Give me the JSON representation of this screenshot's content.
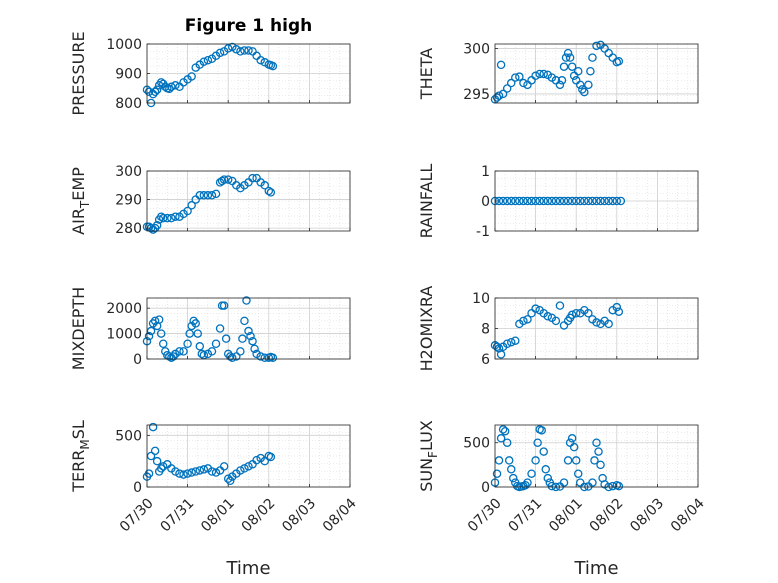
{
  "chart_data": [
    {
      "type": "scatter",
      "title": "Figure 1 high",
      "ylabel": "PRESSURE",
      "xlim": [
        "07/30",
        "08/04"
      ],
      "ylim": [
        800,
        1000
      ],
      "yticks": [
        "800",
        "900",
        "1000"
      ],
      "xticklabels": [],
      "x": [
        0.0,
        0.05,
        0.1,
        0.15,
        0.2,
        0.25,
        0.3,
        0.35,
        0.4,
        0.45,
        0.5,
        0.55,
        0.6,
        0.7,
        0.8,
        0.9,
        1.0,
        1.1,
        1.2,
        1.3,
        1.4,
        1.5,
        1.6,
        1.7,
        1.8,
        1.9,
        2.0,
        2.1,
        2.2,
        2.3,
        2.4,
        2.5,
        2.6,
        2.7,
        2.8,
        2.9,
        3.0,
        3.05,
        3.1
      ],
      "y": [
        845,
        838,
        800,
        830,
        838,
        845,
        860,
        870,
        865,
        855,
        850,
        848,
        855,
        860,
        855,
        870,
        880,
        890,
        920,
        930,
        940,
        945,
        950,
        960,
        970,
        975,
        985,
        990,
        982,
        975,
        978,
        978,
        975,
        960,
        945,
        938,
        930,
        928,
        925
      ]
    },
    {
      "type": "scatter",
      "ylabel": "THETA",
      "xlim": [
        "07/30",
        "08/04"
      ],
      "ylim": [
        294,
        300.5
      ],
      "yticks": [
        "295",
        "300"
      ],
      "xticklabels": [],
      "x": [
        0.0,
        0.05,
        0.1,
        0.15,
        0.2,
        0.3,
        0.4,
        0.5,
        0.6,
        0.7,
        0.8,
        0.9,
        1.0,
        1.1,
        1.2,
        1.3,
        1.4,
        1.5,
        1.6,
        1.65,
        1.7,
        1.75,
        1.8,
        1.85,
        1.9,
        1.95,
        2.0,
        2.05,
        2.1,
        2.15,
        2.2,
        2.3,
        2.35,
        2.4,
        2.5,
        2.6,
        2.7,
        2.8,
        2.9,
        3.0,
        3.05
      ],
      "y": [
        294.4,
        294.6,
        294.8,
        298.2,
        295,
        295.6,
        296.2,
        296.8,
        296.9,
        296.2,
        296,
        296.5,
        297,
        297.2,
        297.2,
        297.1,
        296.8,
        296.5,
        296,
        296.5,
        298,
        299,
        299.5,
        299,
        298,
        297,
        296.5,
        297.5,
        296,
        295.5,
        295.2,
        296,
        297.5,
        299,
        300.3,
        300.4,
        300,
        299.5,
        299,
        298.5,
        298.6
      ]
    },
    {
      "type": "scatter",
      "ylabel": "AIR_TEMP",
      "xlim": [
        "07/30",
        "08/04"
      ],
      "ylim": [
        279,
        300
      ],
      "yticks": [
        "280",
        "290",
        "300"
      ],
      "xticklabels": [],
      "x": [
        0.0,
        0.05,
        0.1,
        0.15,
        0.2,
        0.25,
        0.3,
        0.35,
        0.4,
        0.5,
        0.6,
        0.7,
        0.8,
        0.9,
        1.0,
        1.1,
        1.2,
        1.3,
        1.4,
        1.5,
        1.6,
        1.7,
        1.8,
        1.85,
        1.9,
        2.0,
        2.1,
        2.2,
        2.3,
        2.4,
        2.5,
        2.6,
        2.7,
        2.8,
        2.9,
        3.0,
        3.05
      ],
      "y": [
        280.5,
        280.5,
        280,
        279.5,
        280,
        281,
        283,
        284,
        283.5,
        283.5,
        283.5,
        284,
        284,
        285,
        286,
        288,
        290,
        291.5,
        291.5,
        291.5,
        291.5,
        292,
        296,
        296.5,
        297,
        297,
        296.5,
        295,
        294,
        295,
        296,
        297.5,
        297.5,
        296,
        295,
        293,
        292.5
      ]
    },
    {
      "type": "scatter",
      "ylabel": "RAINFALL",
      "xlim": [
        "07/30",
        "08/04"
      ],
      "ylim": [
        -1,
        1
      ],
      "yticks": [
        "-1",
        "0",
        "1"
      ],
      "xticklabels": [],
      "x": [
        0.0,
        0.1,
        0.2,
        0.3,
        0.4,
        0.5,
        0.6,
        0.7,
        0.8,
        0.9,
        1.0,
        1.1,
        1.2,
        1.3,
        1.4,
        1.5,
        1.6,
        1.7,
        1.8,
        1.9,
        2.0,
        2.1,
        2.2,
        2.3,
        2.4,
        2.5,
        2.6,
        2.7,
        2.8,
        2.9,
        3.0,
        3.1
      ],
      "y": [
        0,
        0,
        0,
        0,
        0,
        0,
        0,
        0,
        0,
        0,
        0,
        0,
        0,
        0,
        0,
        0,
        0,
        0,
        0,
        0,
        0,
        0,
        0,
        0,
        0,
        0,
        0,
        0,
        0,
        0,
        0,
        0
      ]
    },
    {
      "type": "scatter",
      "ylabel": "MIXDEPTH",
      "xlim": [
        "07/30",
        "08/04"
      ],
      "ylim": [
        0,
        2400
      ],
      "yticks": [
        "0",
        "1000",
        "2000"
      ],
      "xticklabels": [],
      "x": [
        0.0,
        0.05,
        0.1,
        0.15,
        0.2,
        0.25,
        0.3,
        0.35,
        0.4,
        0.45,
        0.5,
        0.55,
        0.6,
        0.65,
        0.7,
        0.8,
        0.9,
        1.0,
        1.05,
        1.1,
        1.15,
        1.2,
        1.25,
        1.3,
        1.35,
        1.4,
        1.5,
        1.6,
        1.7,
        1.8,
        1.85,
        1.9,
        1.95,
        2.0,
        2.05,
        2.1,
        2.2,
        2.3,
        2.35,
        2.4,
        2.45,
        2.5,
        2.55,
        2.6,
        2.65,
        2.7,
        2.8,
        2.9,
        3.0,
        3.05,
        3.1
      ],
      "y": [
        700,
        900,
        1100,
        1400,
        1500,
        1300,
        1550,
        1000,
        600,
        300,
        150,
        100,
        50,
        100,
        200,
        300,
        300,
        600,
        1000,
        1300,
        1500,
        1400,
        1000,
        500,
        200,
        150,
        200,
        300,
        600,
        1200,
        2100,
        2100,
        800,
        200,
        100,
        50,
        100,
        300,
        800,
        1500,
        2300,
        1100,
        900,
        700,
        400,
        200,
        100,
        50,
        50,
        80,
        50
      ]
    },
    {
      "type": "scatter",
      "ylabel": "H2OMIXRA",
      "xlim": [
        "07/30",
        "08/04"
      ],
      "ylim": [
        6,
        10
      ],
      "yticks": [
        "6",
        "8",
        "10"
      ],
      "xticklabels": [],
      "x": [
        0.0,
        0.05,
        0.1,
        0.15,
        0.2,
        0.3,
        0.4,
        0.5,
        0.6,
        0.7,
        0.8,
        0.9,
        1.0,
        1.1,
        1.2,
        1.3,
        1.4,
        1.5,
        1.6,
        1.7,
        1.8,
        1.85,
        1.9,
        2.0,
        2.1,
        2.2,
        2.3,
        2.4,
        2.5,
        2.6,
        2.7,
        2.8,
        2.9,
        3.0,
        3.05
      ],
      "y": [
        6.9,
        6.8,
        6.7,
        6.3,
        6.8,
        7,
        7.1,
        7.2,
        8.3,
        8.5,
        8.6,
        9,
        9.3,
        9.2,
        9,
        8.8,
        8.7,
        8.5,
        9.5,
        8.2,
        8.5,
        8.7,
        8.9,
        9,
        9,
        9.2,
        9,
        8.6,
        8.4,
        8.3,
        8.5,
        8.3,
        9.2,
        9.4,
        9.1
      ]
    },
    {
      "type": "scatter",
      "ylabel": "TERR_MSL",
      "xlabel": "Time",
      "xlim": [
        "07/30",
        "08/04"
      ],
      "ylim": [
        0,
        600
      ],
      "yticks": [
        "0",
        "500"
      ],
      "xticklabels": [
        "07/30",
        "07/31",
        "08/01",
        "08/02",
        "08/03",
        "08/04"
      ],
      "x": [
        0.0,
        0.05,
        0.1,
        0.15,
        0.2,
        0.25,
        0.3,
        0.35,
        0.4,
        0.5,
        0.6,
        0.7,
        0.8,
        0.9,
        1.0,
        1.1,
        1.2,
        1.3,
        1.4,
        1.5,
        1.6,
        1.7,
        1.8,
        1.9,
        2.0,
        2.05,
        2.1,
        2.2,
        2.3,
        2.4,
        2.5,
        2.6,
        2.7,
        2.8,
        2.9,
        3.0,
        3.05
      ],
      "y": [
        100,
        130,
        300,
        580,
        350,
        250,
        150,
        180,
        200,
        220,
        180,
        150,
        130,
        120,
        130,
        140,
        150,
        160,
        170,
        180,
        150,
        140,
        160,
        200,
        80,
        60,
        100,
        130,
        160,
        180,
        200,
        220,
        260,
        280,
        250,
        300,
        290
      ]
    },
    {
      "type": "scatter",
      "ylabel": "SUN_FLUX",
      "xlabel": "Time",
      "xlim": [
        "07/30",
        "08/04"
      ],
      "ylim": [
        0,
        700
      ],
      "yticks": [
        "0",
        "500"
      ],
      "xticklabels": [
        "07/30",
        "07/31",
        "08/01",
        "08/02",
        "08/03",
        "08/04"
      ],
      "x": [
        0.0,
        0.05,
        0.1,
        0.15,
        0.2,
        0.25,
        0.3,
        0.35,
        0.4,
        0.45,
        0.5,
        0.55,
        0.6,
        0.65,
        0.7,
        0.75,
        0.8,
        0.9,
        1.0,
        1.05,
        1.1,
        1.15,
        1.2,
        1.25,
        1.3,
        1.35,
        1.4,
        1.5,
        1.6,
        1.7,
        1.8,
        1.85,
        1.9,
        1.95,
        2.0,
        2.05,
        2.1,
        2.2,
        2.3,
        2.4,
        2.45,
        2.5,
        2.55,
        2.6,
        2.65,
        2.7,
        2.8,
        2.9,
        3.0,
        3.05
      ],
      "y": [
        50,
        150,
        300,
        550,
        650,
        630,
        500,
        300,
        200,
        100,
        50,
        10,
        0,
        5,
        10,
        20,
        50,
        150,
        300,
        500,
        650,
        640,
        400,
        200,
        100,
        50,
        10,
        0,
        5,
        50,
        300,
        500,
        550,
        450,
        300,
        150,
        50,
        0,
        5,
        50,
        300,
        500,
        400,
        250,
        100,
        30,
        0,
        10,
        20,
        10
      ]
    }
  ]
}
